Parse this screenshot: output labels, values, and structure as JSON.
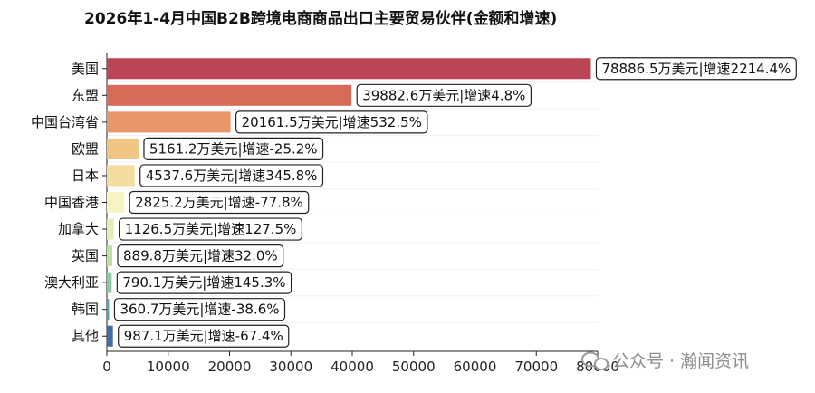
{
  "chart_data": {
    "type": "bar",
    "orientation": "horizontal",
    "title": "2026年1-4月中国B2B跨境电商商品出口主要贸易伙伴(金额和增速)",
    "xlabel": "",
    "ylabel": "",
    "xlim": [
      0,
      80000
    ],
    "xticks": [
      0,
      10000,
      20000,
      30000,
      40000,
      50000,
      60000,
      70000,
      80000
    ],
    "grid": "horizontal-faint",
    "categories": [
      "美国",
      "东盟",
      "中国台湾省",
      "欧盟",
      "日本",
      "中国香港",
      "加拿大",
      "英国",
      "澳大利亚",
      "韩国",
      "其他"
    ],
    "values": [
      78886.5,
      39882.6,
      20161.5,
      5161.2,
      4537.6,
      2825.2,
      1126.5,
      889.8,
      790.1,
      360.7,
      987.1
    ],
    "growth": [
      2214.4,
      4.8,
      532.5,
      -25.2,
      345.8,
      -77.8,
      127.5,
      32.0,
      145.3,
      -38.6,
      -67.4
    ],
    "labels": [
      "78886.5万美元|增速2214.4%",
      "39882.6万美元|增速4.8%",
      "20161.5万美元|增速532.5%",
      "5161.2万美元|增速-25.2%",
      "4537.6万美元|增速345.8%",
      "2825.2万美元|增速-77.8%",
      "1126.5万美元|增速127.5%",
      "889.8万美元|增速32.0%",
      "790.1万美元|增速145.3%",
      "360.7万美元|增速-38.6%",
      "987.1万美元|增速-67.4%"
    ],
    "colors": [
      "#bb4557",
      "#d86a5a",
      "#e8966a",
      "#f0c483",
      "#f3dc9e",
      "#f8f4c2",
      "#e0efb6",
      "#bfe0a3",
      "#8dc9a7",
      "#5aa0b3",
      "#3f6ea2"
    ]
  },
  "watermark": "公众号 · 瀚闻资讯"
}
